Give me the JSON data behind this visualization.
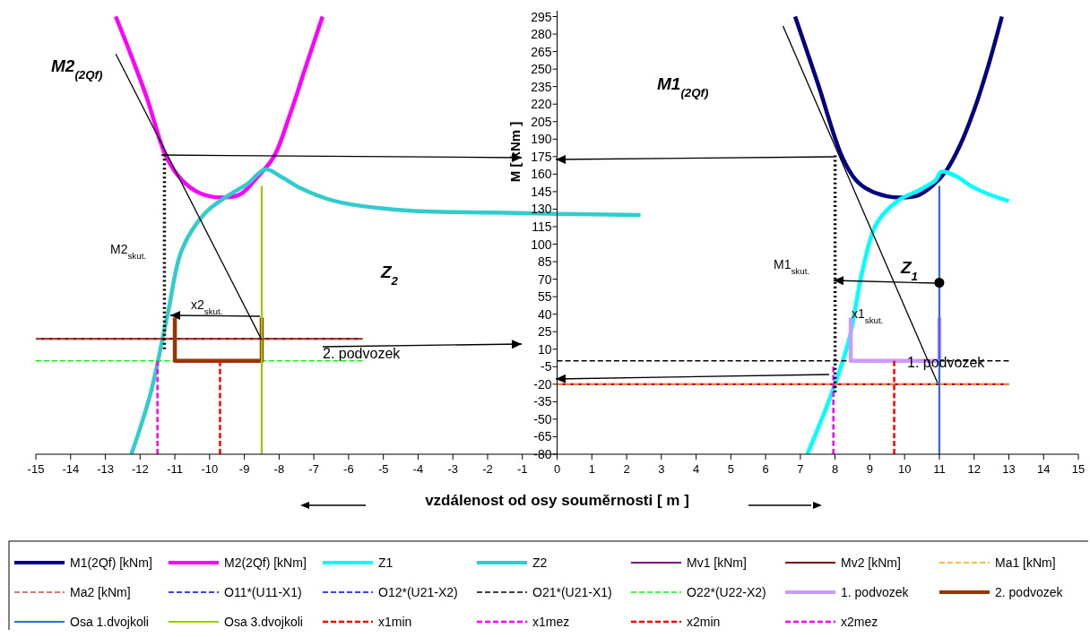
{
  "chart_data": {
    "type": "line",
    "xlabel": "vzdálenost od osy souměrnosti [ m ]",
    "ylabel": "M [ kNm ]",
    "xlim": [
      -15,
      15
    ],
    "xticks": [
      -15,
      -14,
      -13,
      -12,
      -11,
      -10,
      -9,
      -8,
      -7,
      -6,
      -5,
      -4,
      -3,
      -2,
      -1,
      0,
      1,
      2,
      3,
      4,
      5,
      6,
      7,
      8,
      9,
      10,
      11,
      12,
      13,
      14,
      15
    ],
    "ylim": [
      -80,
      300
    ],
    "yticks": [
      -80,
      -65,
      -50,
      -35,
      -20,
      -5,
      10,
      25,
      40,
      55,
      70,
      85,
      100,
      115,
      130,
      145,
      160,
      175,
      190,
      205,
      220,
      235,
      250,
      265,
      280,
      295
    ],
    "grid": false,
    "legend": "bottom",
    "series": [
      {
        "name": "M1(2Qf) [kNm]",
        "color": "#000080",
        "x": [
          6.85,
          7.5,
          8.2,
          8.6,
          9.0,
          9.5,
          9.9,
          10.4,
          10.8,
          11.2,
          11.6,
          12.0,
          12.4,
          12.8
        ],
        "values": [
          295,
          238,
          175,
          155,
          146,
          141,
          140,
          142,
          150,
          163,
          185,
          215,
          252,
          295
        ]
      },
      {
        "name": "M2(2Qf) [kNm]",
        "color": "#ff00ff",
        "x": [
          -12.7,
          -12.3,
          -11.8,
          -11.25,
          -10.8,
          -10.3,
          -9.65,
          -9.1,
          -8.7,
          -8.15,
          -7.7,
          -7.2,
          -6.75
        ],
        "values": [
          295,
          265,
          225,
          175,
          155,
          144,
          140,
          143,
          155,
          175,
          210,
          255,
          295
        ]
      },
      {
        "name": "Z1",
        "color": "#00ffff",
        "x": [
          7.2,
          7.9,
          8.4,
          8.8,
          9.2,
          9.8,
          10.4,
          10.9,
          11.05,
          11.5,
          11.9,
          12.4,
          13.0
        ],
        "values": [
          -80,
          -28,
          18,
          79,
          118,
          137,
          146,
          155,
          162,
          158,
          150,
          143,
          137
        ]
      },
      {
        "name": "Z2",
        "color": "#33cccc",
        "x": [
          -12.25,
          -11.7,
          -11.2,
          -10.8,
          -10.15,
          -9.5,
          -8.9,
          -8.4,
          -7.9,
          -7.45,
          -6.4,
          -4.4,
          -1.8,
          0,
          2.4
        ],
        "values": [
          -80,
          -28,
          41,
          95,
          126,
          141,
          152,
          164,
          157,
          149,
          137,
          129,
          127,
          126,
          125
        ]
      },
      {
        "name": "Mv1 [kNm]",
        "color": "#800080",
        "x": [
          0,
          13
        ],
        "values": [
          -20,
          -20
        ]
      },
      {
        "name": "Mv2 [kNm]",
        "color": "#800000",
        "x": [
          -15,
          -5.6
        ],
        "values": [
          19,
          19
        ]
      },
      {
        "name": "Ma1 [kNm]",
        "color": "#ffa500",
        "line_style": "dashed",
        "x": [
          0,
          13
        ],
        "values": [
          -20,
          -20
        ]
      },
      {
        "name": "Ma2 [kNm]",
        "color": "#c0504d",
        "line_style": "dashed",
        "x": [
          -15,
          -5.6
        ],
        "values": [
          19,
          19
        ]
      },
      {
        "name": "O11*(U11-X1)",
        "color": "#0000ff",
        "line_style": "dashed"
      },
      {
        "name": "O12*(U21-X2)",
        "color": "#0000ff",
        "line_style": "dashed"
      },
      {
        "name": "O21*(U21-X1)",
        "color": "#000000",
        "line_style": "dashed",
        "x": [
          0,
          13
        ],
        "values": [
          0,
          0
        ]
      },
      {
        "name": "O22*(U22-X2)",
        "color": "#00ff00",
        "line_style": "dashed",
        "x": [
          -15,
          -5.6
        ],
        "values": [
          0,
          0
        ]
      },
      {
        "name": "1. podvozek",
        "color": "#cc99ff",
        "x": [
          8.45,
          8.45,
          11,
          11
        ],
        "values": [
          37,
          0,
          0,
          37
        ]
      },
      {
        "name": "2. podvozek",
        "color": "#993300",
        "x": [
          -11,
          -11,
          -8.5,
          -8.5
        ],
        "values": [
          37,
          0,
          0,
          37
        ]
      },
      {
        "name": "Osa 1.dvojkoli",
        "color": "#3366ff",
        "x": [
          11,
          11
        ],
        "values": [
          -80,
          150
        ]
      },
      {
        "name": "Osa 3.dvojkoli",
        "color": "#99cc00",
        "x": [
          -8.5,
          -8.5
        ],
        "values": [
          -80,
          150
        ]
      },
      {
        "name": "x1min",
        "color": "#ff0000",
        "line_style": "dashed",
        "x": [
          9.7,
          9.7
        ],
        "values": [
          -80,
          0
        ]
      },
      {
        "name": "x1mez",
        "color": "#ff00ff",
        "line_style": "dashed",
        "x": [
          7.95,
          7.95
        ],
        "values": [
          -80,
          -5
        ]
      },
      {
        "name": "x2min",
        "color": "#ff0000",
        "line_style": "dashed",
        "x": [
          -9.7,
          -9.7
        ],
        "values": [
          -80,
          0
        ]
      },
      {
        "name": "x2mez",
        "color": "#ff00ff",
        "line_style": "dashed",
        "x": [
          -11.5,
          -11.5
        ],
        "values": [
          -80,
          0
        ]
      },
      {
        "color": "#000000",
        "x": [
          -12.7,
          -8.5
        ],
        "values": [
          263,
          18
        ]
      },
      {
        "color": "#000000",
        "x": [
          6.5,
          10.95
        ],
        "values": [
          287,
          -19
        ]
      },
      {
        "color": "#000000",
        "line_style": "dotted",
        "x": [
          -11.3,
          -11.3
        ],
        "values": [
          177,
          10
        ]
      },
      {
        "color": "#000000",
        "line_style": "dotted",
        "x": [
          8.0,
          8.0
        ],
        "values": [
          176,
          -27
        ]
      },
      {
        "type": "scatter",
        "color": "#000000",
        "marker": "circle",
        "x": [
          11
        ],
        "values": [
          67
        ]
      }
    ],
    "annotations": [
      "M2$_{(2Qf)}$",
      "M1$_{(2Qf)}$",
      "Z$_{2}$",
      "Z$_{1}$",
      "M2$_{skut.}$",
      "M1$_{skut.}$",
      "x2$_{skut.}$",
      "x1$_{skut.}$",
      "2. podvozek",
      "1. podvozek"
    ]
  }
}
